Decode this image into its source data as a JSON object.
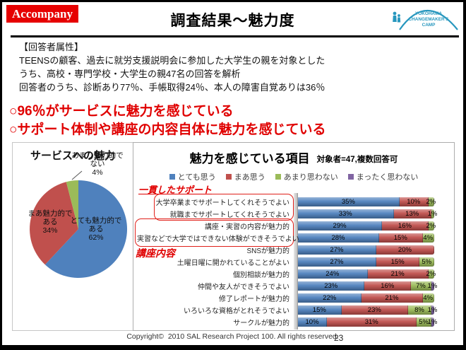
{
  "header": {
    "brand": "Accompany",
    "title": "調査結果〜魅力度",
    "logo": {
      "line1": "YOKOHAMA",
      "line2": "CHANGEMAKER'S",
      "line3": "CAMP"
    }
  },
  "attributes_block": {
    "heading": "【回答者属性】",
    "lines": [
      "TEENSの顧客、過去に就労支援説明会に参加した大学生の親を対象とした",
      "うち、高校・専門学校・大学生の親47名の回答を解析",
      "回答者のうち、診断あり77％、手帳取得24％、本人の障害自覚ありは36％"
    ]
  },
  "key_findings": [
    "○96％がサービスに魅力を感じている",
    "○サポート体制や講座の内容自体に魅力を感じている"
  ],
  "colors": {
    "brand_red": "#e60000",
    "finding_red": "#e00000",
    "logo_teal": "#2797be",
    "series_blue": "#4f81bd",
    "series_red": "#c0504d",
    "series_green": "#9bbb59",
    "series_purple": "#8064a2"
  },
  "chart_data": [
    {
      "type": "pie",
      "title": "サービスへの魅力",
      "slices": [
        {
          "label": "とても魅力的である",
          "value": 62,
          "color": "#4f81bd",
          "label_lines": [
            "とても魅力的で",
            "ある",
            "62%"
          ]
        },
        {
          "label": "まあ魅力的である",
          "value": 34,
          "color": "#c0504d",
          "label_lines": [
            "まあ魅力的で",
            "ある",
            "34%"
          ]
        },
        {
          "label": "あまり魅力的でない",
          "value": 4,
          "color": "#9bbb59",
          "label_lines": [
            "あまり魅力的で",
            "ない",
            "4%"
          ]
        }
      ]
    },
    {
      "type": "bar",
      "title": "魅力を感じている項目",
      "subtitle": "対象者=47,複数回答可",
      "orientation": "horizontal-stacked",
      "legend": [
        "とても思う",
        "まあ思う",
        "あまり思わない",
        "まったく思わない"
      ],
      "series_colors": [
        "#4f81bd",
        "#c0504d",
        "#9bbb59",
        "#8064a2"
      ],
      "annotations": {
        "support": "一貫したサポート",
        "course": "講座内容"
      },
      "categories": [
        "大学卒業までサポートしてくれそうでよい",
        "就職までサポートしてくれそうでよい",
        "講座・実習の内容が魅力的",
        "実習などで大学ではできない体験ができそうでよい",
        "SNSが魅力的",
        "土曜日曜に開かれていることがよい",
        "個別相談が魅力的",
        "仲間や友人ができそうでよい",
        "修了レポートが魅力的",
        "いろいろな資格がとれそうでよい",
        "サークルが魅力的"
      ],
      "rows": [
        [
          35,
          10,
          2,
          0
        ],
        [
          33,
          13,
          1,
          0
        ],
        [
          29,
          16,
          2,
          0
        ],
        [
          28,
          15,
          4,
          0
        ],
        [
          27,
          20,
          0,
          0
        ],
        [
          27,
          15,
          5,
          0
        ],
        [
          24,
          21,
          2,
          0
        ],
        [
          23,
          16,
          7,
          1
        ],
        [
          22,
          21,
          4,
          0
        ],
        [
          15,
          23,
          8,
          1
        ],
        [
          10,
          31,
          5,
          1
        ]
      ],
      "value_suffix": "%",
      "total": 47
    }
  ],
  "footer": {
    "copyright": "Copyright©  2010 SAL Research Project 100. All rights reserved.",
    "page_number": "23"
  }
}
